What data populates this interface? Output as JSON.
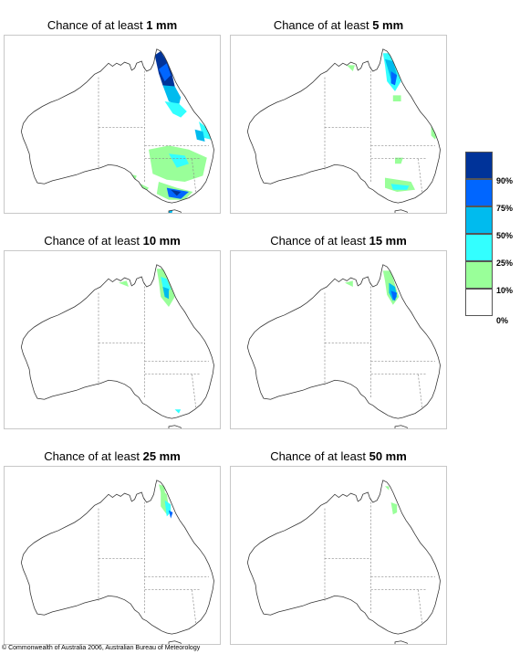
{
  "panels": [
    {
      "title_prefix": "Chance of at least ",
      "amount": "1 mm"
    },
    {
      "title_prefix": "Chance of at least ",
      "amount": "5 mm"
    },
    {
      "title_prefix": "Chance of at least ",
      "amount": "10 mm"
    },
    {
      "title_prefix": "Chance of at least ",
      "amount": "15 mm"
    },
    {
      "title_prefix": "Chance of at least ",
      "amount": "25 mm"
    },
    {
      "title_prefix": "Chance of at least ",
      "amount": "50 mm"
    }
  ],
  "legend": {
    "bands": [
      {
        "range": "90-100%",
        "color": "#003399"
      },
      {
        "range": "75-90%",
        "color": "#0066ff"
      },
      {
        "range": "50-75%",
        "color": "#00bbee"
      },
      {
        "range": "25-50%",
        "color": "#33ffff"
      },
      {
        "range": "10-25%",
        "color": "#99ff99"
      },
      {
        "range": "0-10%",
        "color": "#ffffff"
      }
    ],
    "labels": [
      "90%",
      "75%",
      "50%",
      "25%",
      "10%",
      "0%"
    ]
  },
  "copyright": "© Commonwealth of Australia 2006, Australian Bureau of Meteorology"
}
